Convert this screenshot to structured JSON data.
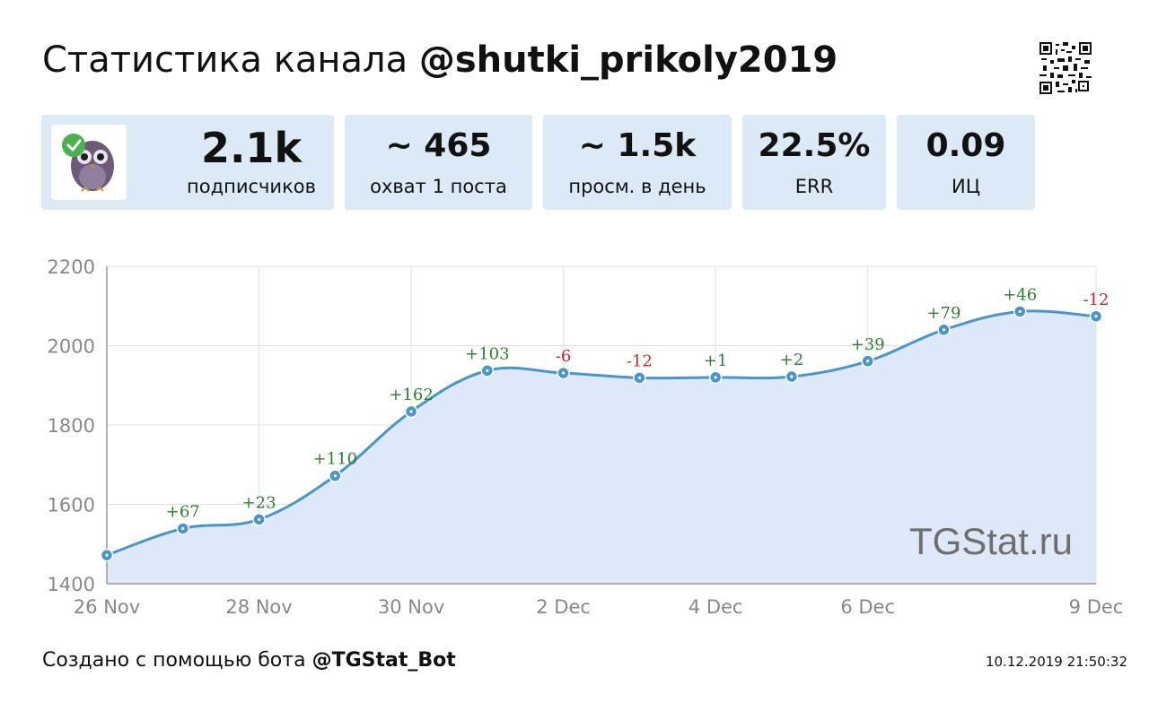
{
  "header": {
    "title_prefix": "Статистика канала ",
    "channel": "@shutki_prikoly2019"
  },
  "stats": [
    {
      "value": "2.1k",
      "label": "подписчиков"
    },
    {
      "value": "~ 465",
      "label": "охват 1 поста"
    },
    {
      "value": "~ 1.5k",
      "label": "просм. в день"
    },
    {
      "value": "22.5%",
      "label": "ERR"
    },
    {
      "value": "0.09",
      "label": "ИЦ"
    }
  ],
  "chart_data": {
    "type": "area",
    "x": [
      "26 Nov",
      "27 Nov",
      "28 Nov",
      "29 Nov",
      "30 Nov",
      "1 Dec",
      "2 Dec",
      "3 Dec",
      "4 Dec",
      "5 Dec",
      "6 Dec",
      "7 Dec",
      "8 Dec",
      "9 Dec"
    ],
    "values": [
      1472,
      1539,
      1562,
      1672,
      1834,
      1937,
      1931,
      1919,
      1920,
      1922,
      1961,
      2040,
      2086,
      2074
    ],
    "data_labels": [
      "",
      "+67",
      "+23",
      "+110",
      "+162",
      "+103",
      "-6",
      "-12",
      "+1",
      "+2",
      "+39",
      "+79",
      "+46",
      "-12"
    ],
    "x_tick_labels": [
      "26 Nov",
      "28 Nov",
      "30 Nov",
      "2 Dec",
      "4 Dec",
      "6 Dec",
      "9 Dec"
    ],
    "y_ticks": [
      1400,
      1600,
      1800,
      2000,
      2200
    ],
    "ylim": [
      1400,
      2200
    ],
    "grid": true,
    "watermark": "TGStat.ru",
    "colors": {
      "line": "#4a95c9",
      "fill": "#dde9f8",
      "positive": "#2e7d32",
      "negative": "#c62828"
    }
  },
  "footer": {
    "text": "Создано с помощью бота ",
    "bot": "@TGStat_Bot",
    "timestamp": "10.12.2019 21:50:32"
  }
}
